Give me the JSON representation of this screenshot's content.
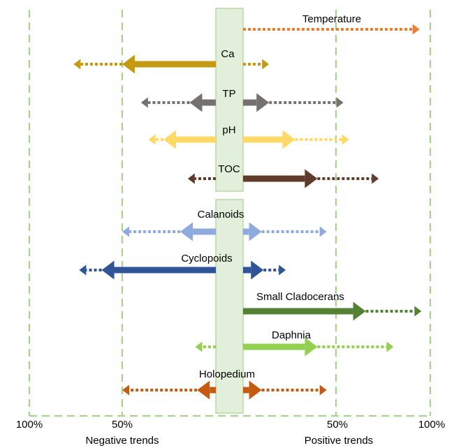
{
  "axis": {
    "left_label": "100%",
    "left_mid_label": "50%",
    "right_mid_label": "50%",
    "right_label": "100%",
    "negative_caption": "Negative trends",
    "positive_caption": "Positive trends"
  },
  "rows": [
    {
      "key": "temperature",
      "label": "Temperature",
      "color": "#ED7D31",
      "neg_dotted": null,
      "neg_solid": null,
      "pos_solid": null,
      "pos_dotted": 95
    },
    {
      "key": "ca",
      "label": "Ca",
      "color": "#C49A12",
      "neg_dotted": 76,
      "neg_solid": 50,
      "pos_solid": null,
      "pos_dotted": 14
    },
    {
      "key": "tp",
      "label": "TP",
      "color": "#767171",
      "neg_dotted": 40,
      "neg_solid": 14,
      "pos_solid": 14,
      "pos_dotted": 54
    },
    {
      "key": "ph",
      "label": "pH",
      "color": "#FFD966",
      "neg_dotted": 36,
      "neg_solid": 28,
      "pos_solid": 28,
      "pos_dotted": 57
    },
    {
      "key": "toc",
      "label": "TOC",
      "color": "#603B2B",
      "neg_dotted": 15,
      "neg_solid": null,
      "pos_solid": 40,
      "pos_dotted": 73
    },
    {
      "key": "calanoids",
      "label": "Calanoids",
      "color": "#8FAADC",
      "neg_dotted": 50,
      "neg_solid": 19,
      "pos_solid": 10,
      "pos_dotted": 45
    },
    {
      "key": "cyclopoids",
      "label": "Cyclopoids",
      "color": "#2F5597",
      "neg_dotted": 73,
      "neg_solid": 61,
      "pos_solid": 11,
      "pos_dotted": 23
    },
    {
      "key": "small_cladocerans",
      "label": "Small Cladocerans",
      "color": "#548235",
      "neg_dotted": null,
      "neg_solid": null,
      "pos_solid": 66,
      "pos_dotted": 96
    },
    {
      "key": "daphnia",
      "label": "Daphnia",
      "color": "#92D050",
      "neg_dotted": 11,
      "neg_solid": null,
      "pos_solid": 40,
      "pos_dotted": 81
    },
    {
      "key": "holopedium",
      "label": "Holopedium",
      "color": "#C55A11",
      "neg_dotted": 50,
      "neg_solid": 10,
      "pos_solid": 10,
      "pos_dotted": 45
    }
  ]
}
